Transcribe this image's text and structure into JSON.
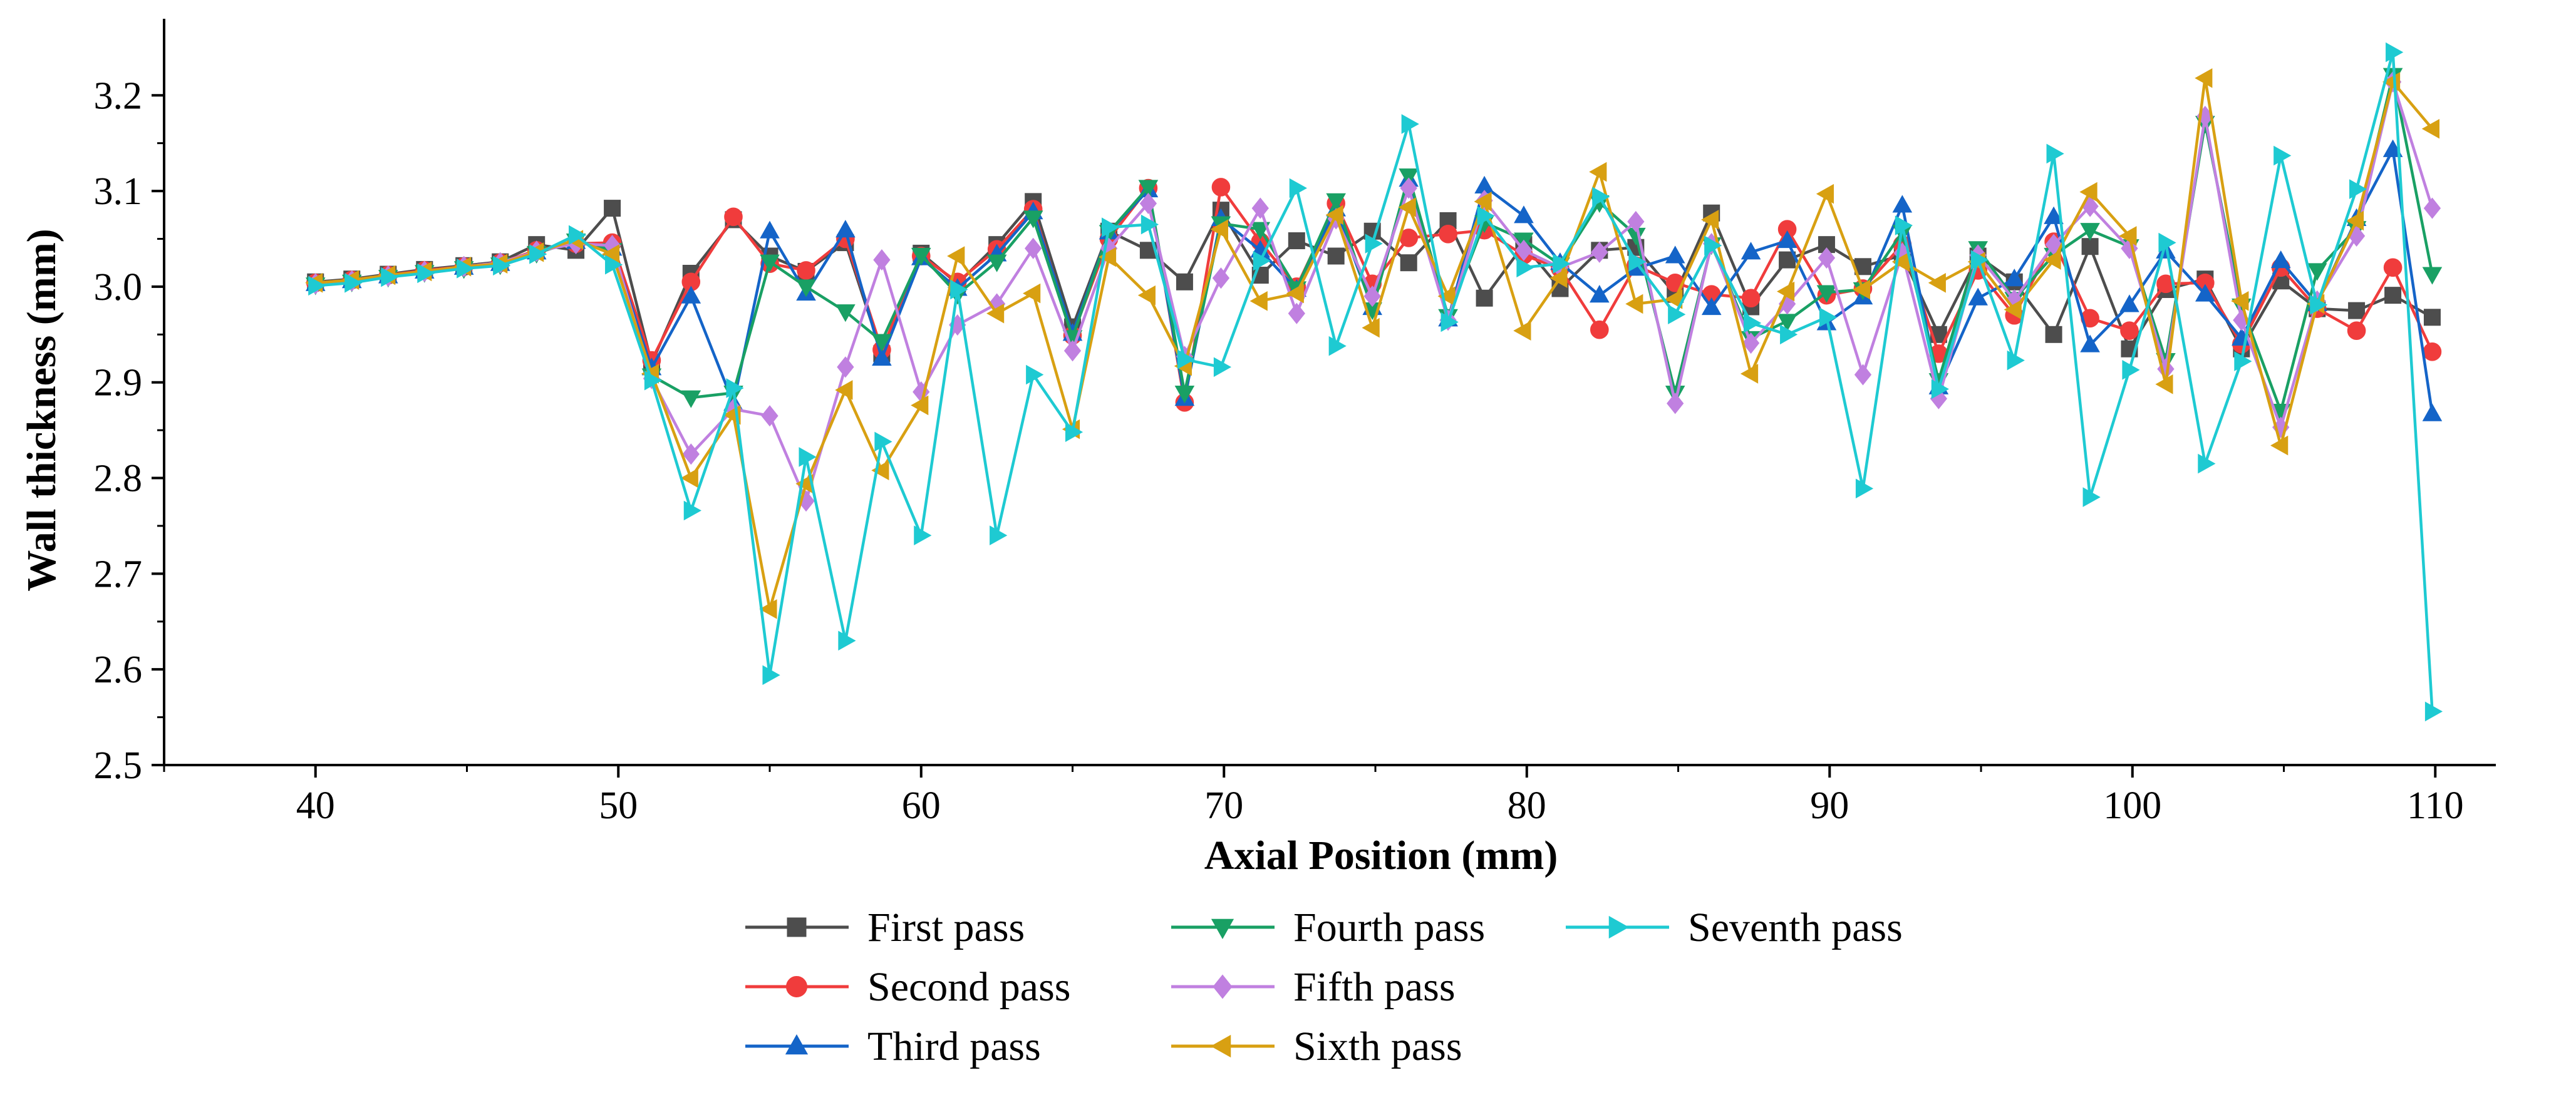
{
  "chart_data": {
    "type": "line",
    "title": "",
    "xlabel": "Axial Position  (mm)",
    "ylabel": "Wall thickness  (mm)",
    "xlim": [
      35,
      112
    ],
    "ylim": [
      2.5,
      3.28
    ],
    "xticks": [
      40,
      50,
      60,
      70,
      80,
      90,
      100,
      110
    ],
    "yticks": [
      2.5,
      2.6,
      2.7,
      2.8,
      2.9,
      3.0,
      3.1,
      3.2
    ],
    "x": [
      40,
      41.2,
      42.4,
      43.6,
      44.9,
      46.1,
      47.3,
      48.6,
      49.8,
      51.1,
      52.4,
      53.8,
      55.0,
      56.2,
      57.5,
      58.7,
      60.0,
      61.2,
      62.5,
      63.7,
      65.0,
      66.2,
      67.5,
      68.7,
      69.9,
      71.2,
      72.4,
      73.7,
      74.9,
      76.1,
      77.4,
      78.6,
      79.9,
      81.1,
      82.4,
      83.6,
      84.9,
      86.1,
      87.4,
      88.6,
      89.9,
      91.1,
      92.4,
      93.6,
      94.9,
      96.1,
      97.4,
      98.6,
      99.9,
      101.1,
      102.4,
      103.6,
      104.9,
      106.1,
      107.4,
      108.6,
      109.9
    ],
    "series": [
      {
        "name": "First pass",
        "color": "#4d4d4d",
        "marker": "square",
        "values": [
          3.005,
          3.008,
          3.013,
          3.018,
          3.022,
          3.026,
          3.044,
          3.038,
          3.082,
          2.92,
          3.014,
          3.07,
          3.032,
          3.016,
          3.046,
          2.93,
          3.035,
          3.003,
          3.044,
          3.089,
          2.958,
          3.058,
          3.038,
          3.005,
          3.08,
          3.012,
          3.048,
          3.032,
          3.058,
          3.025,
          3.069,
          2.988,
          3.044,
          2.998,
          3.038,
          3.041,
          2.992,
          3.077,
          2.979,
          3.028,
          3.044,
          3.021,
          3.033,
          2.95,
          3.032,
          3.005,
          2.95,
          3.042,
          2.935,
          2.997,
          3.008,
          2.935,
          3.006,
          2.977,
          2.975,
          2.991,
          2.968
        ]
      },
      {
        "name": "Second pass",
        "color": "#f03c3c",
        "marker": "circle",
        "values": [
          3.004,
          3.007,
          3.012,
          3.017,
          3.021,
          3.025,
          3.038,
          3.045,
          3.046,
          2.923,
          3.005,
          3.073,
          3.024,
          3.017,
          3.05,
          2.934,
          3.032,
          3.005,
          3.039,
          3.081,
          2.949,
          3.05,
          3.103,
          2.879,
          3.104,
          3.047,
          3.0,
          3.087,
          3.003,
          3.051,
          3.055,
          3.059,
          3.033,
          3.019,
          2.955,
          3.022,
          3.004,
          2.992,
          2.988,
          3.06,
          2.991,
          2.998,
          3.044,
          2.93,
          3.017,
          2.97,
          3.047,
          2.967,
          2.954,
          3.003,
          3.004,
          2.94,
          3.02,
          2.977,
          2.954,
          3.02,
          2.932
        ]
      },
      {
        "name": "Third pass",
        "color": "#1464c8",
        "marker": "triangle-up",
        "values": [
          3.003,
          3.006,
          3.011,
          3.016,
          3.02,
          3.024,
          3.036,
          3.047,
          3.04,
          2.915,
          2.99,
          2.878,
          3.058,
          2.993,
          3.059,
          2.925,
          3.03,
          2.998,
          3.034,
          3.078,
          2.951,
          3.057,
          3.101,
          2.883,
          3.071,
          3.038,
          2.997,
          3.081,
          2.978,
          3.112,
          2.966,
          3.105,
          3.074,
          3.025,
          2.991,
          3.019,
          3.032,
          2.978,
          3.036,
          3.048,
          2.962,
          2.989,
          3.085,
          2.895,
          2.988,
          3.008,
          3.073,
          2.939,
          2.981,
          3.037,
          2.992,
          2.946,
          3.027,
          2.982,
          3.071,
          3.143,
          2.867
        ]
      },
      {
        "name": "Fourth pass",
        "color": "#19a064",
        "marker": "triangle-down",
        "values": [
          3.002,
          3.005,
          3.01,
          3.015,
          3.019,
          3.023,
          3.035,
          3.048,
          3.038,
          2.907,
          2.884,
          2.889,
          3.026,
          3.0,
          2.974,
          2.943,
          3.033,
          2.992,
          3.026,
          3.072,
          2.947,
          3.057,
          3.104,
          2.889,
          3.066,
          3.06,
          2.998,
          3.09,
          2.976,
          3.116,
          2.969,
          3.067,
          3.049,
          3.023,
          3.088,
          3.054,
          2.889,
          3.044,
          2.946,
          2.964,
          2.994,
          2.997,
          3.057,
          2.902,
          3.04,
          2.987,
          3.033,
          3.059,
          3.042,
          2.923,
          3.171,
          2.98,
          2.87,
          3.017,
          3.061,
          3.221,
          3.013
        ]
      },
      {
        "name": "Fifth pass",
        "color": "#c080e0",
        "marker": "diamond",
        "values": [
          3.003,
          3.006,
          3.011,
          3.016,
          3.021,
          3.025,
          3.037,
          3.045,
          3.043,
          2.904,
          2.825,
          2.872,
          2.865,
          2.776,
          2.916,
          3.028,
          2.89,
          2.96,
          2.982,
          3.04,
          2.933,
          3.04,
          3.087,
          2.927,
          3.009,
          3.082,
          2.972,
          3.071,
          2.99,
          3.103,
          2.965,
          3.09,
          3.038,
          3.02,
          3.036,
          3.068,
          2.878,
          3.045,
          2.941,
          2.982,
          3.03,
          2.908,
          3.035,
          2.883,
          3.033,
          2.986,
          3.044,
          3.084,
          3.04,
          2.914,
          3.178,
          2.965,
          2.853,
          2.985,
          3.053,
          3.214,
          3.082
        ]
      },
      {
        "name": "Sixth pass",
        "color": "#d8a012",
        "marker": "triangle-left",
        "values": [
          3.004,
          3.007,
          3.012,
          3.016,
          3.021,
          3.024,
          3.036,
          3.049,
          3.034,
          2.909,
          2.8,
          2.866,
          2.663,
          2.794,
          2.892,
          2.808,
          2.876,
          3.032,
          2.972,
          2.993,
          2.851,
          3.031,
          2.991,
          2.917,
          3.06,
          2.985,
          2.993,
          3.075,
          2.957,
          3.083,
          2.99,
          3.089,
          2.954,
          3.009,
          3.12,
          2.982,
          2.987,
          3.07,
          2.909,
          2.995,
          3.097,
          2.997,
          3.026,
          3.004,
          3.026,
          2.976,
          3.028,
          3.099,
          3.053,
          2.898,
          3.218,
          2.985,
          2.834,
          2.982,
          3.069,
          3.214,
          3.165
        ]
      },
      {
        "name": "Seventh pass",
        "color": "#1ecad2",
        "marker": "triangle-right",
        "values": [
          3.001,
          3.004,
          3.01,
          3.014,
          3.019,
          3.022,
          3.034,
          3.054,
          3.023,
          2.902,
          2.766,
          2.894,
          2.594,
          2.822,
          2.63,
          2.838,
          2.74,
          2.997,
          2.74,
          2.908,
          2.848,
          3.062,
          3.065,
          2.924,
          2.916,
          3.027,
          3.103,
          2.938,
          3.045,
          3.17,
          2.963,
          3.074,
          3.02,
          3.024,
          3.094,
          3.026,
          2.971,
          3.043,
          2.962,
          2.95,
          2.968,
          2.789,
          3.064,
          2.893,
          3.028,
          2.923,
          3.139,
          2.78,
          2.913,
          3.046,
          2.815,
          2.922,
          3.137,
          2.981,
          3.102,
          3.245,
          2.556
        ]
      }
    ],
    "legend_position": "bottom",
    "grid": false
  }
}
